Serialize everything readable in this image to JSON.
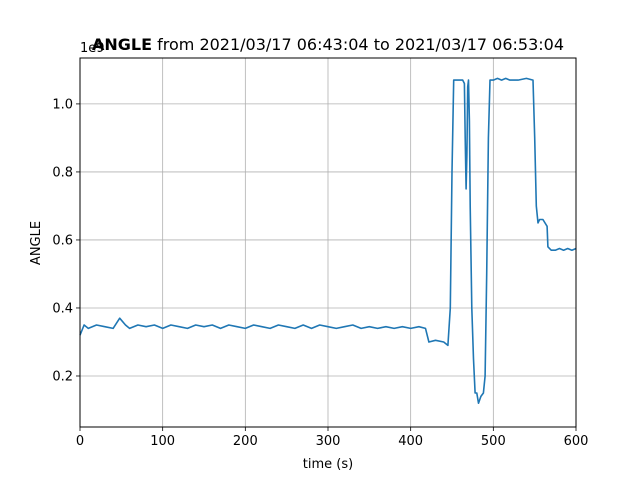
{
  "chart_data": {
    "type": "line",
    "title_bold": "ANGLE",
    "title_rest": " from 2021/03/17 06:43:04 to 2021/03/17 06:53:04",
    "xlabel": "time (s)",
    "ylabel": "ANGLE",
    "offset_label": "1e9",
    "xlim": [
      0,
      600
    ],
    "ylim": [
      0.05,
      1.135
    ],
    "xticks": [
      0,
      100,
      200,
      300,
      400,
      500,
      600
    ],
    "xtick_labels": [
      "0",
      "100",
      "200",
      "300",
      "400",
      "500",
      "600"
    ],
    "yticks": [
      0.2,
      0.4,
      0.6,
      0.8,
      1.0
    ],
    "ytick_labels": [
      "0.2",
      "0.4",
      "0.6",
      "0.8",
      "1.0"
    ],
    "grid": true,
    "line_color": "#1f77b4",
    "series": [
      {
        "x": [
          0,
          5,
          10,
          20,
          30,
          40,
          48,
          55,
          60,
          70,
          80,
          90,
          100,
          110,
          120,
          130,
          140,
          150,
          160,
          170,
          180,
          190,
          200,
          210,
          220,
          230,
          240,
          250,
          260,
          270,
          280,
          290,
          300,
          310,
          320,
          330,
          340,
          350,
          360,
          370,
          380,
          390,
          400,
          410,
          418,
          422,
          430,
          440,
          445,
          448,
          450,
          452,
          455,
          460,
          463,
          465,
          466,
          467,
          468,
          469,
          470,
          471,
          472,
          474,
          476,
          478,
          480,
          482,
          485,
          488,
          490,
          492,
          494,
          496,
          498,
          500,
          505,
          510,
          515,
          520,
          530,
          540,
          548,
          550,
          552,
          554,
          556,
          560,
          565,
          566,
          570,
          575,
          580,
          585,
          590,
          595,
          600
        ],
        "y": [
          0.32,
          0.35,
          0.34,
          0.35,
          0.345,
          0.34,
          0.37,
          0.35,
          0.34,
          0.35,
          0.345,
          0.35,
          0.34,
          0.35,
          0.345,
          0.34,
          0.35,
          0.345,
          0.35,
          0.34,
          0.35,
          0.345,
          0.34,
          0.35,
          0.345,
          0.34,
          0.35,
          0.345,
          0.34,
          0.35,
          0.34,
          0.35,
          0.345,
          0.34,
          0.345,
          0.35,
          0.34,
          0.345,
          0.34,
          0.345,
          0.34,
          0.345,
          0.34,
          0.345,
          0.34,
          0.3,
          0.305,
          0.3,
          0.29,
          0.4,
          0.8,
          1.07,
          1.07,
          1.07,
          1.07,
          1.06,
          0.9,
          0.75,
          0.85,
          1.05,
          1.07,
          0.95,
          0.7,
          0.4,
          0.25,
          0.15,
          0.15,
          0.12,
          0.14,
          0.15,
          0.2,
          0.5,
          0.9,
          1.07,
          1.07,
          1.07,
          1.075,
          1.07,
          1.075,
          1.07,
          1.07,
          1.075,
          1.07,
          0.9,
          0.7,
          0.65,
          0.66,
          0.66,
          0.64,
          0.58,
          0.57,
          0.57,
          0.575,
          0.57,
          0.575,
          0.57,
          0.575
        ]
      }
    ]
  }
}
